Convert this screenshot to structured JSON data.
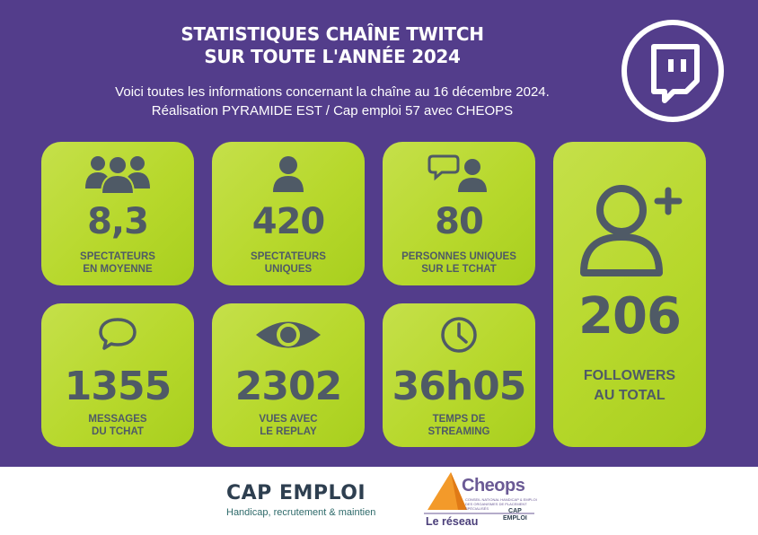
{
  "header": {
    "title_line1": "STATISTIQUES CHAÎNE TWITCH",
    "title_line2": "SUR TOUTE L'ANNÉE 2024",
    "subtitle_line1": "Voici toutes les informations concernant la chaîne au 16 décembre 2024.",
    "subtitle_line2": "Réalisation PYRAMIDE EST / Cap emploi 57 avec CHEOPS",
    "logo_icon": "twitch-logo-icon"
  },
  "colors": {
    "background": "#533d8b",
    "card": "#b7d82c",
    "text_dark": "#4f5a66"
  },
  "stats": [
    {
      "icon": "group-icon",
      "value": "8,3",
      "label_line1": "SPECTATEURS",
      "label_line2": "EN MOYENNE"
    },
    {
      "icon": "user-icon",
      "value": "420",
      "label_line1": "SPECTATEURS",
      "label_line2": "UNIQUES"
    },
    {
      "icon": "chat-user-icon",
      "value": "80",
      "label_line1": "PERSONNES UNIQUES",
      "label_line2": "SUR LE TCHAT"
    },
    {
      "icon": "speech-bubble-icon",
      "value": "1355",
      "label_line1": "MESSAGES",
      "label_line2": "DU TCHAT"
    },
    {
      "icon": "eye-icon",
      "value": "2302",
      "label_line1": "VUES AVEC",
      "label_line2": "LE REPLAY"
    },
    {
      "icon": "clock-icon",
      "value": "36h05",
      "label_line1": "TEMPS DE",
      "label_line2": "STREAMING"
    },
    {
      "icon": "add-user-icon",
      "value": "206",
      "label_line1": "FOLLOWERS",
      "label_line2": "AU TOTAL"
    }
  ],
  "footer": {
    "capemploi_brand": "CAP EMPLOI",
    "capemploi_tagline": "Handicap, recrutement & maintien",
    "cheops_name": "Cheops",
    "cheops_sub": "CONSEIL NATIONAL HANDICAP & EMPLOI DES ORGANISMES DE PLACEMENT SPÉCIALISÉS",
    "cheops_reseau": "Le réseau",
    "cheops_mini_cap": "CAP",
    "cheops_mini_emploi": "EMPLOI"
  }
}
